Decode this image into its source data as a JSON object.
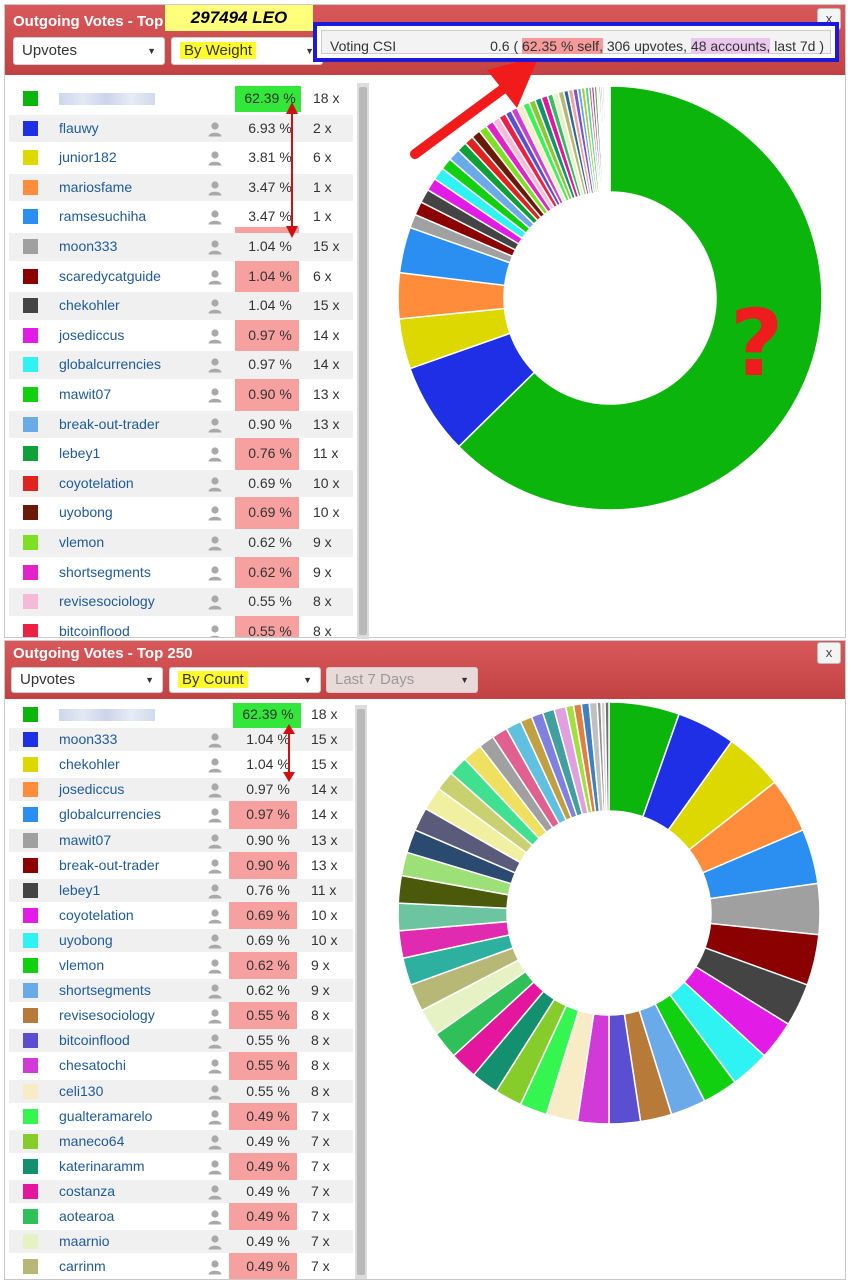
{
  "top_panel": {
    "title": "Outgoing Votes - Top",
    "close_label": "x",
    "vote_type": "Upvotes",
    "sort": "By Weight",
    "leo_badge": "297494 LEO",
    "csi": {
      "label": "Voting CSI",
      "prefix": "0.6 (",
      "self_pct": "62.35 % self,",
      "upvotes": "306 upvotes,",
      "accounts": "48 accounts,",
      "period": "last 7d )"
    },
    "annotation_question": "?",
    "rows": [
      {
        "name": "",
        "pct": "62.39 %",
        "count": "18 x",
        "color": "#0bb50b"
      },
      {
        "name": "flauwy",
        "pct": "6.93 %",
        "count": "2 x",
        "color": "#1f2fe6"
      },
      {
        "name": "junior182",
        "pct": "3.81 %",
        "count": "6 x",
        "color": "#dcd800"
      },
      {
        "name": "mariosfame",
        "pct": "3.47 %",
        "count": "1 x",
        "color": "#ff8c3a"
      },
      {
        "name": "ramsesuchiha",
        "pct": "3.47 %",
        "count": "1 x",
        "color": "#2a8ff0"
      },
      {
        "name": "moon333",
        "pct": "1.04 %",
        "count": "15 x",
        "color": "#a0a0a0"
      },
      {
        "name": "scaredycatguide",
        "pct": "1.04 %",
        "count": "6 x",
        "color": "#8b0000"
      },
      {
        "name": "chekohler",
        "pct": "1.04 %",
        "count": "15 x",
        "color": "#444444"
      },
      {
        "name": "josediccus",
        "pct": "0.97 %",
        "count": "14 x",
        "color": "#e21be6"
      },
      {
        "name": "globalcurrencies",
        "pct": "0.97 %",
        "count": "14 x",
        "color": "#2ff2f2"
      },
      {
        "name": "mawit07",
        "pct": "0.90 %",
        "count": "13 x",
        "color": "#10d010"
      },
      {
        "name": "break-out-trader",
        "pct": "0.90 %",
        "count": "13 x",
        "color": "#6aaae8"
      },
      {
        "name": "lebey1",
        "pct": "0.76 %",
        "count": "11 x",
        "color": "#10a03a"
      },
      {
        "name": "coyotelation",
        "pct": "0.69 %",
        "count": "10 x",
        "color": "#e0231f"
      },
      {
        "name": "uyobong",
        "pct": "0.69 %",
        "count": "10 x",
        "color": "#6b1a08"
      },
      {
        "name": "vlemon",
        "pct": "0.62 %",
        "count": "9 x",
        "color": "#7ee022"
      },
      {
        "name": "shortsegments",
        "pct": "0.62 %",
        "count": "9 x",
        "color": "#e322c8"
      },
      {
        "name": "revisesociology",
        "pct": "0.55 %",
        "count": "8 x",
        "color": "#f7b9d9"
      },
      {
        "name": "bitcoinflood",
        "pct": "0.55 %",
        "count": "8 x",
        "color": "#ee1f44"
      }
    ]
  },
  "bottom_panel": {
    "title": "Outgoing Votes - Top 250",
    "close_label": "x",
    "vote_type": "Upvotes",
    "sort": "By Count",
    "period": "Last 7 Days",
    "rows": [
      {
        "name": "",
        "pct": "62.39 %",
        "count": "18 x",
        "color": "#0bb50b"
      },
      {
        "name": "moon333",
        "pct": "1.04 %",
        "count": "15 x",
        "color": "#1f2fe6"
      },
      {
        "name": "chekohler",
        "pct": "1.04 %",
        "count": "15 x",
        "color": "#dcd800"
      },
      {
        "name": "josediccus",
        "pct": "0.97 %",
        "count": "14 x",
        "color": "#ff8c3a"
      },
      {
        "name": "globalcurrencies",
        "pct": "0.97 %",
        "count": "14 x",
        "color": "#2a8ff0"
      },
      {
        "name": "mawit07",
        "pct": "0.90 %",
        "count": "13 x",
        "color": "#a0a0a0"
      },
      {
        "name": "break-out-trader",
        "pct": "0.90 %",
        "count": "13 x",
        "color": "#8b0000"
      },
      {
        "name": "lebey1",
        "pct": "0.76 %",
        "count": "11 x",
        "color": "#444444"
      },
      {
        "name": "coyotelation",
        "pct": "0.69 %",
        "count": "10 x",
        "color": "#e21be6"
      },
      {
        "name": "uyobong",
        "pct": "0.69 %",
        "count": "10 x",
        "color": "#2ff2f2"
      },
      {
        "name": "vlemon",
        "pct": "0.62 %",
        "count": "9 x",
        "color": "#10d010"
      },
      {
        "name": "shortsegments",
        "pct": "0.62 %",
        "count": "9 x",
        "color": "#6aaae8"
      },
      {
        "name": "revisesociology",
        "pct": "0.55 %",
        "count": "8 x",
        "color": "#b87a38"
      },
      {
        "name": "bitcoinflood",
        "pct": "0.55 %",
        "count": "8 x",
        "color": "#5a4fd0"
      },
      {
        "name": "chesatochi",
        "pct": "0.55 %",
        "count": "8 x",
        "color": "#d23ad8"
      },
      {
        "name": "celi130",
        "pct": "0.55 %",
        "count": "8 x",
        "color": "#f7ecc6"
      },
      {
        "name": "gualteramarelo",
        "pct": "0.49 %",
        "count": "7 x",
        "color": "#35f551"
      },
      {
        "name": "maneco64",
        "pct": "0.49 %",
        "count": "7 x",
        "color": "#86cc2a"
      },
      {
        "name": "katerinaramm",
        "pct": "0.49 %",
        "count": "7 x",
        "color": "#129070"
      },
      {
        "name": "costanza",
        "pct": "0.49 %",
        "count": "7 x",
        "color": "#e4169e"
      },
      {
        "name": "aotearoa",
        "pct": "0.49 %",
        "count": "7 x",
        "color": "#30c05a"
      },
      {
        "name": "maarnio",
        "pct": "0.49 %",
        "count": "7 x",
        "color": "#e6f2c4"
      },
      {
        "name": "carrinm",
        "pct": "0.49 %",
        "count": "7 x",
        "color": "#b8b876"
      }
    ]
  },
  "chart_data": [
    {
      "type": "pie",
      "donut": true,
      "weights": [
        62.39,
        6.93,
        3.81,
        3.47,
        3.47,
        1.04,
        1.04,
        1.04,
        0.97,
        0.97,
        0.9,
        0.9,
        0.76,
        0.69,
        0.69,
        0.62,
        0.62,
        0.55,
        0.55,
        0.49,
        0.49,
        0.49,
        0.49,
        0.49,
        0.49,
        0.49,
        0.42,
        0.42,
        0.42,
        0.35,
        0.35,
        0.35,
        0.28,
        0.28,
        0.28,
        0.21,
        0.21,
        0.21,
        0.14,
        0.14,
        0.14,
        0.14,
        0.07,
        0.07,
        0.07,
        0.07,
        0.07,
        0.07
      ],
      "colors": [
        "#0bb50b",
        "#1f2fe6",
        "#dcd800",
        "#ff8c3a",
        "#2a8ff0",
        "#a0a0a0",
        "#8b0000",
        "#444444",
        "#e21be6",
        "#2ff2f2",
        "#10d010",
        "#6aaae8",
        "#10a03a",
        "#e0231f",
        "#6b1a08",
        "#7ee022",
        "#e322c8",
        "#f7b9d9",
        "#ee1f44",
        "#5a4fd0",
        "#d23ad8",
        "#f7ecc6",
        "#35f551",
        "#86cc2a",
        "#129070",
        "#e4169e",
        "#30c05a",
        "#e6f2c4",
        "#b8b876",
        "#2a6a9a",
        "#f0a0a0",
        "#8050d0",
        "#50b0f0",
        "#c0c030",
        "#40e0a0",
        "#e06060",
        "#a040a0",
        "#60a060",
        "#f0d060",
        "#4060c0",
        "#c08040",
        "#80c0e0",
        "#e080c0",
        "#60e060",
        "#a0a0e0",
        "#e0e080",
        "#c0c0c0",
        "#909090"
      ]
    },
    {
      "type": "pie",
      "donut": true,
      "weights": [
        18,
        15,
        15,
        14,
        14,
        13,
        13,
        11,
        10,
        10,
        9,
        9,
        8,
        8,
        8,
        8,
        7,
        7,
        7,
        7,
        7,
        7,
        7,
        7,
        7,
        7,
        7,
        6,
        6,
        6,
        6,
        5,
        5,
        5,
        4,
        4,
        4,
        3,
        3,
        3,
        3,
        2,
        2,
        2,
        2,
        1,
        1,
        1
      ],
      "colors": [
        "#0bb50b",
        "#1f2fe6",
        "#dcd800",
        "#ff8c3a",
        "#2a8ff0",
        "#a0a0a0",
        "#8b0000",
        "#444444",
        "#e21be6",
        "#2ff2f2",
        "#10d010",
        "#6aaae8",
        "#b87a38",
        "#5a4fd0",
        "#d23ad8",
        "#f7ecc6",
        "#35f551",
        "#86cc2a",
        "#129070",
        "#e4169e",
        "#30c05a",
        "#e6f2c4",
        "#b8b876",
        "#2db0a0",
        "#e02ab0",
        "#6cc4a0",
        "#4a5a0a",
        "#9ee078",
        "#2a4a70",
        "#5a5a7a",
        "#f0f0a0",
        "#c8d070",
        "#40e090",
        "#f0e060",
        "#a0a0a0",
        "#e06090",
        "#60c0e0",
        "#c0a040",
        "#8080e0",
        "#40a0a0",
        "#e0a0e0",
        "#a0e040",
        "#e08040",
        "#4080c0",
        "#c0c0c0",
        "#909090",
        "#d0d0d0",
        "#707070"
      ]
    }
  ]
}
